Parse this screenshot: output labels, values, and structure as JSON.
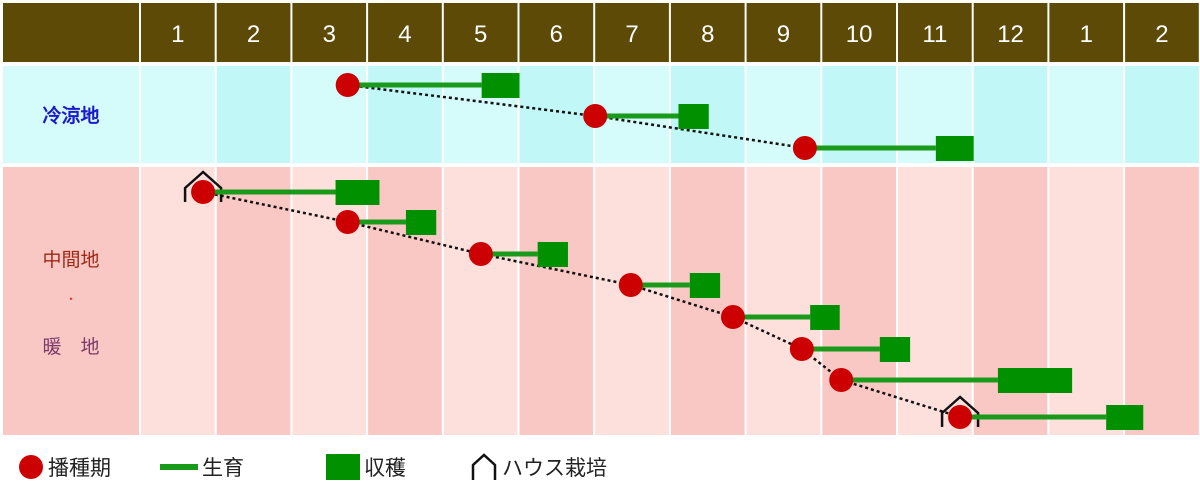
{
  "header": {
    "months": [
      "1",
      "2",
      "3",
      "4",
      "5",
      "6",
      "7",
      "8",
      "9",
      "10",
      "11",
      "12",
      "1",
      "2"
    ]
  },
  "regions": [
    {
      "label": "冷涼地",
      "label_color": "#1a1acc",
      "background_light": "#d6fbfb",
      "background_dark": "#c2f7f7"
    },
    {
      "label_lines": [
        "中間地",
        "・",
        "暖　地"
      ],
      "label_colors": [
        "#a02818",
        "#e04040",
        "#7a3a6a"
      ],
      "background_light": "#fde0dc",
      "background_dark": "#fac8c4"
    }
  ],
  "chart_data": {
    "type": "gantt",
    "x_axis": "month (1 = start of January; 13 = start of following January)",
    "rows": [
      {
        "region": 0,
        "entries": [
          {
            "sowing": 3.73,
            "harvest_start": 5.5,
            "harvest_end": 6.0,
            "house": false
          },
          {
            "sowing": 7.0,
            "harvest_start": 8.1,
            "harvest_end": 8.5,
            "house": false
          },
          {
            "sowing": 9.77,
            "harvest_start": 11.5,
            "harvest_end": 12.0,
            "house": false
          }
        ]
      },
      {
        "region": 1,
        "entries": [
          {
            "sowing": 1.82,
            "harvest_start": 3.57,
            "harvest_end": 4.15,
            "house": true
          },
          {
            "sowing": 3.73,
            "harvest_start": 4.5,
            "harvest_end": 4.9,
            "house": false
          },
          {
            "sowing": 5.49,
            "harvest_start": 6.24,
            "harvest_end": 6.64,
            "house": false
          },
          {
            "sowing": 7.47,
            "harvest_start": 8.25,
            "harvest_end": 8.65,
            "house": false
          },
          {
            "sowing": 8.82,
            "harvest_start": 9.84,
            "harvest_end": 10.23,
            "house": false
          },
          {
            "sowing": 9.73,
            "harvest_start": 10.76,
            "harvest_end": 11.16,
            "house": false
          },
          {
            "sowing": 10.25,
            "harvest_start": 12.32,
            "harvest_end": 13.3,
            "house": false
          },
          {
            "sowing": 11.82,
            "harvest_start": 13.75,
            "harvest_end": 14.24,
            "house": true
          }
        ]
      }
    ]
  },
  "legend": {
    "sowing": "播種期",
    "growth": "生育",
    "harvest": "収穫",
    "house": "ハウス栽培"
  },
  "colors": {
    "header_bg": "#5c4a06",
    "header_text": "#ffffff",
    "sowing": "#cc0000",
    "growth": "#1a9a1a",
    "harvest": "#009000",
    "connector": "#111111"
  }
}
